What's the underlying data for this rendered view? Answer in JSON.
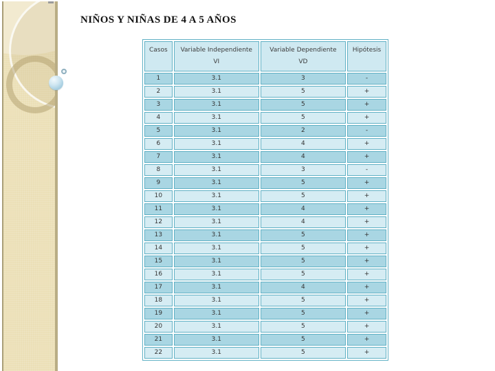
{
  "slide": {
    "title": "NIÑOS Y NIÑAS DE 4 A 5 AÑOS"
  },
  "table": {
    "headers": {
      "casos": "Casos",
      "vi_title": "Variable Independiente",
      "vi_sub": "VI",
      "vd_title": "Variable Dependiente",
      "vd_sub": "VD",
      "hipotesis": "Hipótesis"
    },
    "rows": [
      {
        "caso": "1",
        "vi": "3.1",
        "vd": "3",
        "hipotesis": "-"
      },
      {
        "caso": "2",
        "vi": "3.1",
        "vd": "5",
        "hipotesis": "+"
      },
      {
        "caso": "3",
        "vi": "3.1",
        "vd": "5",
        "hipotesis": "+"
      },
      {
        "caso": "4",
        "vi": "3.1",
        "vd": "5",
        "hipotesis": "+"
      },
      {
        "caso": "5",
        "vi": "3.1",
        "vd": "2",
        "hipotesis": "-"
      },
      {
        "caso": "6",
        "vi": "3.1",
        "vd": "4",
        "hipotesis": "+"
      },
      {
        "caso": "7",
        "vi": "3.1",
        "vd": "4",
        "hipotesis": "+"
      },
      {
        "caso": "8",
        "vi": "3.1",
        "vd": "3",
        "hipotesis": "-"
      },
      {
        "caso": "9",
        "vi": "3.1",
        "vd": "5",
        "hipotesis": "+"
      },
      {
        "caso": "10",
        "vi": "3.1",
        "vd": "5",
        "hipotesis": "+"
      },
      {
        "caso": "11",
        "vi": "3.1",
        "vd": "4",
        "hipotesis": "+"
      },
      {
        "caso": "12",
        "vi": "3.1",
        "vd": "4",
        "hipotesis": "+"
      },
      {
        "caso": "13",
        "vi": "3.1",
        "vd": "5",
        "hipotesis": "+"
      },
      {
        "caso": "14",
        "vi": "3.1",
        "vd": "5",
        "hipotesis": "+"
      },
      {
        "caso": "15",
        "vi": "3.1",
        "vd": "5",
        "hipotesis": "+"
      },
      {
        "caso": "16",
        "vi": "3.1",
        "vd": "5",
        "hipotesis": "+"
      },
      {
        "caso": "17",
        "vi": "3.1",
        "vd": "4",
        "hipotesis": "+"
      },
      {
        "caso": "18",
        "vi": "3.1",
        "vd": "5",
        "hipotesis": "+"
      },
      {
        "caso": "19",
        "vi": "3.1",
        "vd": "5",
        "hipotesis": "+"
      },
      {
        "caso": "20",
        "vi": "3.1",
        "vd": "5",
        "hipotesis": "+"
      },
      {
        "caso": "21",
        "vi": "3.1",
        "vd": "5",
        "hipotesis": "+"
      },
      {
        "caso": "22",
        "vi": "3.1",
        "vd": "5",
        "hipotesis": "+"
      }
    ]
  },
  "colors": {
    "table_border": "#5fb0c4",
    "row_odd": "#a9d6e3",
    "row_even": "#d5ecf3",
    "header_bg": "#cfe9f1",
    "sidebar_beige": "#ebdfb6"
  }
}
